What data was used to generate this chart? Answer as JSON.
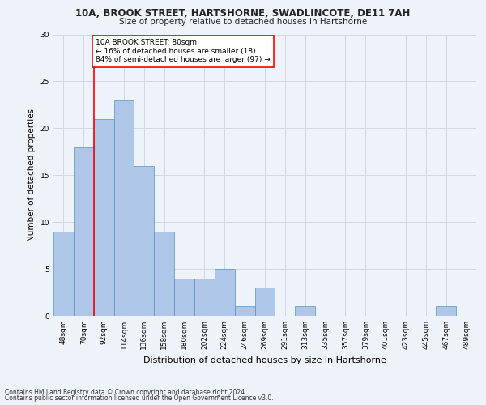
{
  "title1": "10A, BROOK STREET, HARTSHORNE, SWADLINCOTE, DE11 7AH",
  "title2": "Size of property relative to detached houses in Hartshorne",
  "xlabel": "Distribution of detached houses by size in Hartshorne",
  "ylabel": "Number of detached properties",
  "footer1": "Contains HM Land Registry data © Crown copyright and database right 2024.",
  "footer2": "Contains public sector information licensed under the Open Government Licence v3.0.",
  "bin_labels": [
    "48sqm",
    "70sqm",
    "92sqm",
    "114sqm",
    "136sqm",
    "158sqm",
    "180sqm",
    "202sqm",
    "224sqm",
    "246sqm",
    "269sqm",
    "291sqm",
    "313sqm",
    "335sqm",
    "357sqm",
    "379sqm",
    "401sqm",
    "423sqm",
    "445sqm",
    "467sqm",
    "489sqm"
  ],
  "bar_values": [
    9,
    18,
    21,
    23,
    16,
    9,
    4,
    4,
    5,
    1,
    3,
    0,
    1,
    0,
    0,
    0,
    0,
    0,
    0,
    1,
    0
  ],
  "bar_color": "#aec6e8",
  "bar_edge_color": "#5a8fc0",
  "grid_color": "#d0d8e8",
  "vline_x": 1.5,
  "vline_color": "red",
  "annotation_text": "10A BROOK STREET: 80sqm\n← 16% of detached houses are smaller (18)\n84% of semi-detached houses are larger (97) →",
  "annotation_box_color": "white",
  "annotation_box_edge_color": "red",
  "ylim": [
    0,
    30
  ],
  "yticks": [
    0,
    5,
    10,
    15,
    20,
    25,
    30
  ],
  "bg_color": "#eef2f9",
  "title1_fontsize": 8.5,
  "title2_fontsize": 7.5,
  "xlabel_fontsize": 8.0,
  "ylabel_fontsize": 7.5,
  "tick_fontsize": 6.5,
  "footer_fontsize": 5.5,
  "ann_fontsize": 6.5
}
